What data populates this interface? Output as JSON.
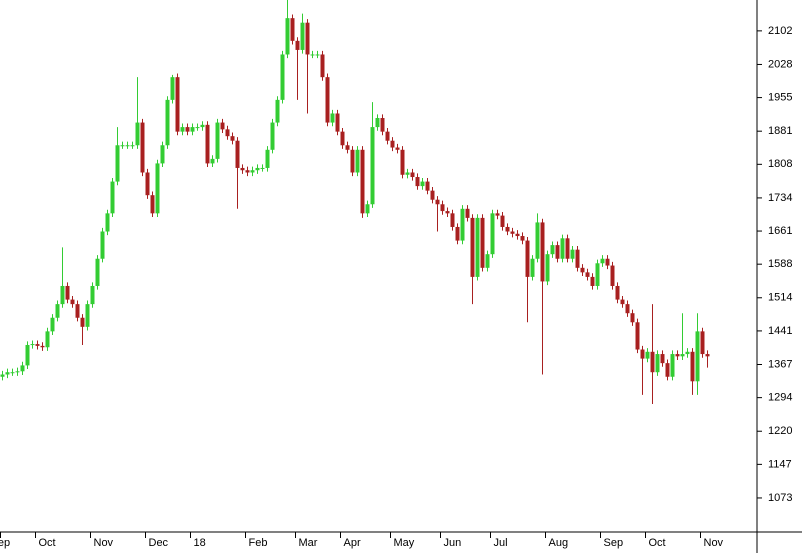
{
  "chart_data": {
    "type": "candlestick",
    "categories": [
      "Sep",
      null,
      null,
      null,
      null,
      null,
      null,
      "Oct",
      null,
      null,
      null,
      null,
      null,
      null,
      null,
      null,
      null,
      null,
      "Nov",
      null,
      null,
      null,
      null,
      null,
      null,
      null,
      null,
      null,
      null,
      "Dec",
      null,
      null,
      null,
      null,
      null,
      null,
      null,
      null,
      "18",
      null,
      null,
      null,
      null,
      null,
      null,
      null,
      null,
      null,
      null,
      "Feb",
      null,
      null,
      null,
      null,
      null,
      null,
      null,
      null,
      null,
      "Mar",
      null,
      null,
      null,
      null,
      null,
      null,
      null,
      null,
      "Apr",
      null,
      null,
      null,
      null,
      null,
      null,
      null,
      null,
      null,
      "May",
      null,
      null,
      null,
      null,
      null,
      null,
      null,
      null,
      null,
      "Jun",
      null,
      null,
      null,
      null,
      null,
      null,
      null,
      null,
      null,
      "Jul",
      null,
      null,
      null,
      null,
      null,
      null,
      null,
      null,
      null,
      null,
      "Aug",
      null,
      null,
      null,
      null,
      null,
      null,
      null,
      null,
      null,
      null,
      "Sep",
      null,
      null,
      null,
      null,
      null,
      null,
      null,
      null,
      "Oct",
      null,
      null,
      null,
      null,
      null,
      null,
      null,
      null,
      null,
      null,
      "Nov",
      null
    ],
    "open": [
      1340,
      1345,
      1350,
      1350,
      1352,
      1365,
      1410,
      1412,
      1408,
      1405,
      1440,
      1470,
      1500,
      1540,
      1510,
      1500,
      1470,
      1450,
      1500,
      1540,
      1600,
      1660,
      1700,
      1770,
      1850,
      1850,
      1850,
      1850,
      1900,
      1790,
      1740,
      1700,
      1810,
      1850,
      1950,
      2000,
      1880,
      1890,
      1880,
      1890,
      1890,
      1895,
      1810,
      1820,
      1900,
      1885,
      1870,
      1860,
      1800,
      1795,
      1790,
      1795,
      1800,
      1800,
      1840,
      1900,
      1950,
      2050,
      2130,
      2080,
      2060,
      2120,
      2050,
      2050,
      2050,
      2000,
      1900,
      1920,
      1880,
      1850,
      1840,
      1790,
      1840,
      1700,
      1720,
      1890,
      1910,
      1880,
      1860,
      1845,
      1840,
      1785,
      1790,
      1780,
      1760,
      1770,
      1750,
      1730,
      1720,
      1705,
      1700,
      1670,
      1640,
      1710,
      1690,
      1560,
      1690,
      1580,
      1610,
      1700,
      1695,
      1670,
      1660,
      1655,
      1650,
      1640,
      1560,
      1600,
      1680,
      1550,
      1610,
      1630,
      1600,
      1645,
      1600,
      1620,
      1580,
      1570,
      1560,
      1540,
      1590,
      1600,
      1585,
      1540,
      1510,
      1500,
      1480,
      1460,
      1400,
      1380,
      1395,
      1350,
      1390,
      1370,
      1340,
      1390,
      1385,
      1390,
      1395,
      1330,
      1440,
      1390
    ],
    "high": [
      1353,
      1358,
      1358,
      1360,
      1373,
      1418,
      1420,
      1420,
      1416,
      1448,
      1478,
      1508,
      1625,
      1548,
      1518,
      1508,
      1478,
      1508,
      1548,
      1608,
      1668,
      1708,
      1778,
      1890,
      1858,
      1858,
      1858,
      2000,
      1908,
      1798,
      1748,
      1818,
      1858,
      1958,
      2005,
      2008,
      1898,
      1898,
      1898,
      1898,
      1903,
      1903,
      1828,
      1908,
      1908,
      1893,
      1878,
      1868,
      1808,
      1803,
      1803,
      1808,
      1808,
      1848,
      1908,
      1958,
      2058,
      2170,
      2138,
      2088,
      2140,
      2128,
      2058,
      2058,
      2058,
      2008,
      1928,
      1928,
      1888,
      1858,
      1848,
      1848,
      1848,
      1728,
      1945,
      1918,
      1918,
      1888,
      1868,
      1853,
      1848,
      1798,
      1798,
      1788,
      1778,
      1778,
      1758,
      1738,
      1728,
      1713,
      1708,
      1678,
      1718,
      1718,
      1698,
      1698,
      1698,
      1618,
      1708,
      1708,
      1703,
      1678,
      1668,
      1663,
      1658,
      1648,
      1608,
      1700,
      1688,
      1618,
      1638,
      1638,
      1653,
      1653,
      1628,
      1628,
      1588,
      1578,
      1568,
      1598,
      1608,
      1608,
      1593,
      1548,
      1518,
      1508,
      1488,
      1468,
      1408,
      1403,
      1500,
      1398,
      1398,
      1378,
      1398,
      1398,
      1480,
      1403,
      1403,
      1480,
      1448,
      1398
    ],
    "low": [
      1332,
      1337,
      1342,
      1342,
      1344,
      1357,
      1402,
      1400,
      1397,
      1397,
      1432,
      1462,
      1492,
      1502,
      1492,
      1462,
      1410,
      1442,
      1492,
      1532,
      1592,
      1652,
      1692,
      1762,
      1842,
      1842,
      1842,
      1842,
      1782,
      1732,
      1692,
      1692,
      1802,
      1842,
      1942,
      1872,
      1872,
      1872,
      1872,
      1882,
      1882,
      1802,
      1802,
      1812,
      1877,
      1862,
      1852,
      1710,
      1787,
      1782,
      1782,
      1787,
      1792,
      1792,
      1832,
      1892,
      1942,
      2042,
      2072,
      1950,
      2052,
      1920,
      2042,
      2042,
      1992,
      1892,
      1892,
      1872,
      1842,
      1832,
      1782,
      1782,
      1690,
      1692,
      1712,
      1882,
      1872,
      1852,
      1837,
      1832,
      1777,
      1777,
      1772,
      1752,
      1752,
      1742,
      1722,
      1660,
      1697,
      1692,
      1662,
      1632,
      1632,
      1682,
      1500,
      1552,
      1572,
      1572,
      1602,
      1687,
      1662,
      1652,
      1647,
      1642,
      1632,
      1460,
      1552,
      1592,
      1345,
      1542,
      1602,
      1592,
      1592,
      1592,
      1592,
      1572,
      1562,
      1552,
      1532,
      1532,
      1582,
      1577,
      1532,
      1502,
      1492,
      1472,
      1452,
      1392,
      1300,
      1372,
      1280,
      1342,
      1362,
      1332,
      1332,
      1377,
      1377,
      1382,
      1300,
      1300,
      1382,
      1360
    ],
    "close": [
      1345,
      1350,
      1350,
      1352,
      1365,
      1410,
      1412,
      1408,
      1405,
      1440,
      1470,
      1500,
      1540,
      1510,
      1500,
      1470,
      1450,
      1500,
      1540,
      1600,
      1660,
      1700,
      1770,
      1850,
      1850,
      1850,
      1850,
      1900,
      1790,
      1740,
      1700,
      1810,
      1850,
      1950,
      2000,
      1880,
      1890,
      1880,
      1890,
      1890,
      1895,
      1810,
      1820,
      1900,
      1885,
      1870,
      1860,
      1800,
      1795,
      1790,
      1795,
      1800,
      1800,
      1840,
      1900,
      1950,
      2050,
      2130,
      2080,
      2060,
      2120,
      2050,
      2050,
      2050,
      2000,
      1900,
      1920,
      1880,
      1850,
      1840,
      1790,
      1840,
      1700,
      1720,
      1890,
      1910,
      1880,
      1860,
      1845,
      1840,
      1785,
      1790,
      1780,
      1760,
      1770,
      1750,
      1730,
      1720,
      1705,
      1700,
      1670,
      1640,
      1710,
      1690,
      1560,
      1690,
      1580,
      1610,
      1700,
      1695,
      1670,
      1660,
      1655,
      1650,
      1640,
      1560,
      1600,
      1680,
      1550,
      1610,
      1630,
      1600,
      1645,
      1600,
      1620,
      1580,
      1570,
      1560,
      1540,
      1590,
      1600,
      1585,
      1540,
      1510,
      1500,
      1480,
      1460,
      1400,
      1380,
      1395,
      1350,
      1390,
      1370,
      1340,
      1390,
      1385,
      1390,
      1395,
      1330,
      1440,
      1390,
      1385
    ],
    "up_color": "#33cc33",
    "down_color": "#a82020",
    "ylim": [
      998,
      2170
    ],
    "yticks": [
      1073,
      1147,
      1220,
      1294,
      1367,
      1441,
      1514,
      1588,
      1661,
      1734,
      1808,
      1881,
      1955,
      2028,
      2102
    ]
  }
}
